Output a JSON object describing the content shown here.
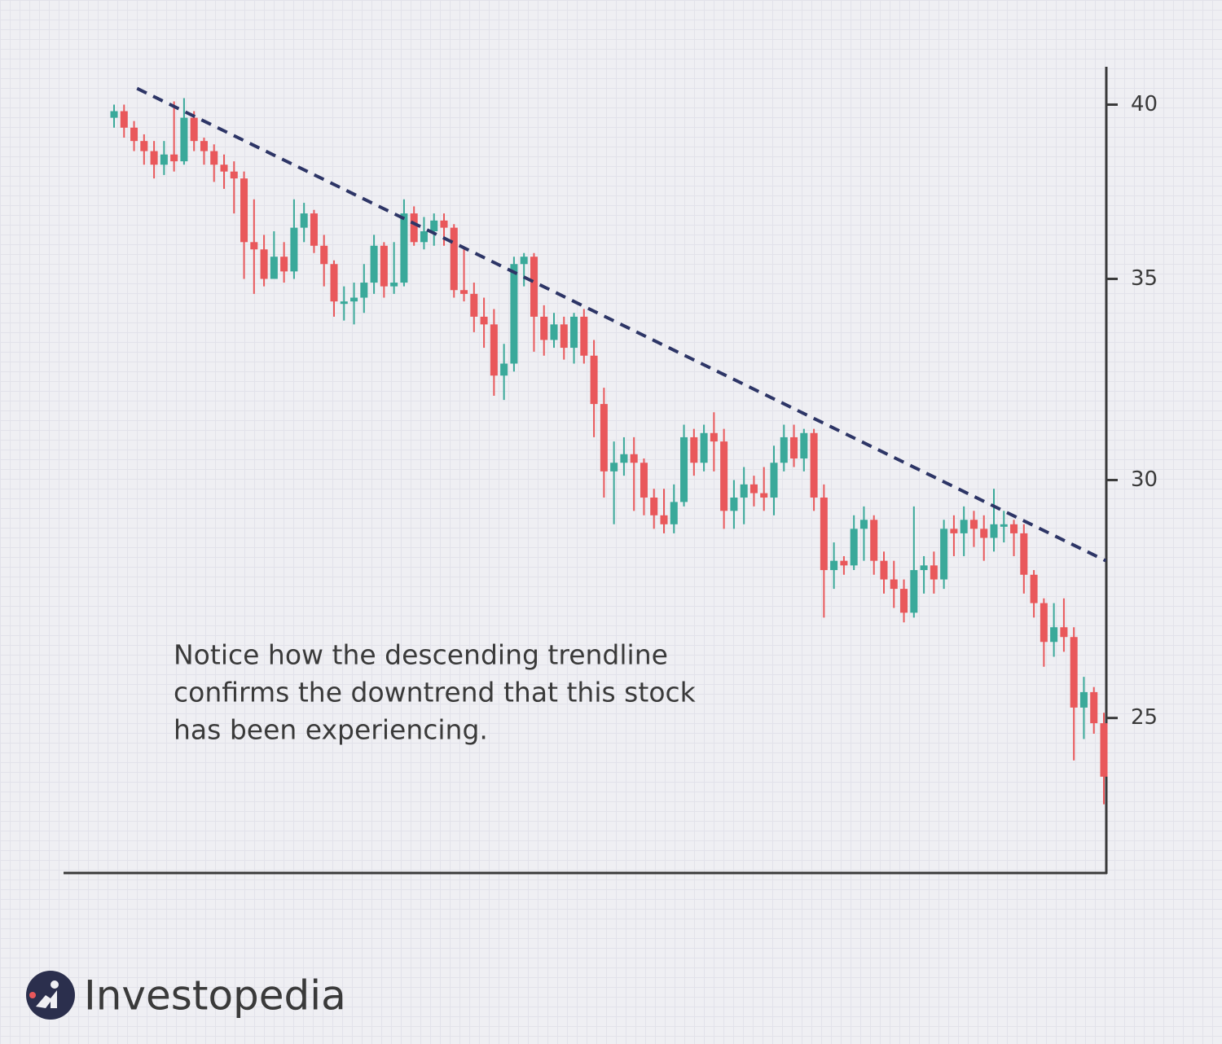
{
  "chart_data": {
    "type": "candlestick",
    "log_scale": true,
    "ylim": [
      22.2,
      41.1
    ],
    "yticks": [
      25,
      30,
      35,
      40
    ],
    "up_color": "#3aa99a",
    "down_color": "#e9585b",
    "trendline": {
      "x": [
        2.3,
        99.2
      ],
      "values": [
        40.5,
        28.2
      ],
      "color": "#2d3566"
    },
    "annotation": [
      "Notice how the descending trendline",
      "confirms the downtrend that this stock",
      "has been experiencing."
    ],
    "open": [
      39.6,
      39.8,
      39.3,
      38.9,
      38.6,
      38.2,
      38.5,
      38.3,
      39.6,
      38.9,
      38.6,
      38.2,
      38.0,
      37.8,
      36.0,
      35.8,
      35.0,
      35.6,
      35.2,
      36.4,
      36.8,
      35.9,
      35.4,
      34.4,
      34.4,
      34.5,
      34.9,
      35.9,
      34.8,
      34.9,
      36.8,
      36.0,
      36.3,
      36.6,
      36.4,
      34.7,
      34.6,
      34.0,
      33.8,
      32.5,
      32.8,
      35.4,
      35.6,
      34.0,
      33.4,
      33.8,
      33.2,
      34.0,
      33.0,
      31.8,
      30.2,
      30.4,
      30.6,
      30.4,
      29.6,
      29.2,
      29.0,
      29.5,
      31.0,
      30.4,
      31.1,
      30.9,
      29.3,
      29.6,
      29.9,
      29.7,
      29.6,
      30.4,
      31.0,
      30.5,
      31.1,
      29.6,
      28.0,
      28.2,
      28.1,
      28.9,
      29.1,
      28.2,
      27.8,
      27.6,
      27.1,
      28.0,
      28.1,
      27.8,
      28.9,
      28.8,
      29.1,
      28.9,
      28.7,
      29.0,
      29.0,
      28.8,
      27.9,
      27.3,
      26.5,
      26.8,
      26.6,
      25.2,
      25.5,
      24.9
    ],
    "high": [
      40.0,
      40.0,
      39.5,
      39.1,
      38.9,
      38.9,
      40.1,
      40.2,
      39.8,
      39.0,
      38.8,
      38.5,
      38.3,
      38.0,
      37.2,
      36.2,
      36.3,
      36.0,
      37.2,
      37.1,
      36.9,
      36.2,
      35.5,
      34.8,
      34.9,
      35.4,
      36.2,
      36.0,
      36.0,
      37.2,
      37.0,
      36.7,
      36.8,
      36.8,
      36.5,
      35.8,
      34.9,
      34.5,
      34.2,
      33.3,
      35.6,
      35.7,
      35.7,
      34.3,
      34.1,
      34.0,
      34.1,
      34.2,
      33.4,
      32.2,
      30.9,
      31.0,
      31.0,
      30.5,
      29.8,
      29.8,
      29.9,
      31.3,
      31.2,
      31.3,
      31.6,
      31.2,
      30.0,
      30.3,
      30.1,
      30.3,
      30.8,
      31.3,
      31.3,
      31.2,
      31.2,
      29.9,
      28.6,
      28.3,
      29.2,
      29.4,
      29.2,
      28.4,
      28.2,
      27.8,
      29.4,
      28.3,
      28.4,
      29.1,
      29.2,
      29.4,
      29.3,
      29.2,
      29.8,
      29.3,
      29.1,
      29.0,
      28.0,
      27.4,
      27.3,
      27.4,
      26.8,
      25.8,
      25.6,
      25.1
    ],
    "low": [
      39.3,
      39.0,
      38.6,
      38.2,
      37.8,
      37.9,
      38.0,
      38.2,
      38.6,
      38.2,
      37.7,
      37.5,
      36.8,
      35.0,
      34.6,
      34.8,
      35.1,
      34.9,
      35.0,
      36.0,
      35.7,
      34.8,
      34.0,
      33.9,
      33.8,
      34.1,
      34.6,
      34.5,
      34.6,
      34.8,
      35.9,
      35.8,
      35.9,
      35.9,
      34.5,
      34.4,
      33.6,
      33.2,
      32.0,
      31.9,
      32.6,
      34.8,
      33.1,
      33.0,
      33.2,
      32.9,
      32.8,
      32.8,
      31.0,
      29.6,
      29.0,
      30.1,
      29.3,
      29.2,
      28.9,
      28.8,
      28.8,
      29.4,
      30.1,
      30.2,
      30.2,
      28.9,
      28.9,
      29.0,
      29.4,
      29.3,
      29.2,
      30.2,
      30.3,
      30.2,
      29.3,
      27.0,
      27.6,
      27.9,
      28.0,
      28.2,
      27.9,
      27.5,
      27.2,
      26.9,
      27.0,
      27.5,
      27.5,
      27.6,
      28.3,
      28.3,
      28.5,
      28.2,
      28.4,
      28.6,
      28.3,
      27.5,
      27.0,
      26.0,
      26.2,
      26.3,
      24.2,
      24.6,
      24.7,
      23.4
    ],
    "close": [
      39.8,
      39.3,
      38.9,
      38.6,
      38.2,
      38.5,
      38.3,
      39.6,
      38.9,
      38.6,
      38.2,
      38.0,
      37.8,
      36.0,
      35.8,
      35.0,
      35.6,
      35.2,
      36.4,
      36.8,
      35.9,
      35.4,
      34.4,
      34.4,
      34.5,
      34.9,
      35.9,
      34.8,
      34.9,
      36.8,
      36.0,
      36.3,
      36.6,
      36.4,
      34.7,
      34.6,
      34.0,
      33.8,
      32.5,
      32.8,
      35.4,
      35.6,
      34.0,
      33.4,
      33.8,
      33.2,
      34.0,
      33.0,
      31.8,
      30.2,
      30.4,
      30.6,
      30.4,
      29.6,
      29.2,
      29.0,
      29.5,
      31.0,
      30.4,
      31.1,
      30.9,
      29.3,
      29.6,
      29.9,
      29.7,
      29.6,
      30.4,
      31.0,
      30.5,
      31.1,
      29.6,
      28.0,
      28.2,
      28.1,
      28.9,
      29.1,
      28.2,
      27.8,
      27.6,
      27.1,
      28.0,
      28.1,
      27.8,
      28.9,
      28.8,
      29.1,
      28.9,
      28.7,
      29.0,
      29.0,
      28.8,
      27.9,
      27.3,
      26.5,
      26.8,
      26.6,
      25.2,
      25.5,
      24.9,
      23.9
    ]
  },
  "brand": "Investopedia"
}
